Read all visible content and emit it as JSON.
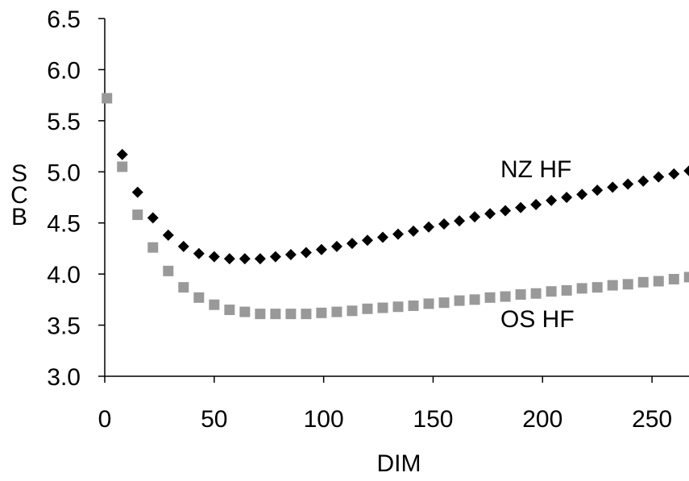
{
  "chart_data": {
    "type": "scatter",
    "xlabel": "DIM",
    "ylabel": "SCB",
    "xlim": [
      0,
      268
    ],
    "ylim": [
      3.0,
      6.5
    ],
    "x_ticks": [
      "0",
      "50",
      "100",
      "150",
      "200",
      "250"
    ],
    "y_ticks": [
      "3.0",
      "3.5",
      "4.0",
      "4.5",
      "5.0",
      "5.5",
      "6.0",
      "6.5"
    ],
    "grid": false,
    "legend": "none",
    "series": [
      {
        "name": "NZ HF",
        "marker": "diamond",
        "color": "#000000",
        "x": [
          8,
          15,
          22,
          29,
          36,
          43,
          50,
          57,
          64,
          71,
          78,
          85,
          92,
          99,
          106,
          113,
          120,
          127,
          134,
          141,
          148,
          155,
          162,
          169,
          176,
          183,
          190,
          197,
          204,
          211,
          218,
          225,
          232,
          239,
          246,
          253,
          260,
          267
        ],
        "y": [
          5.17,
          4.8,
          4.55,
          4.38,
          4.27,
          4.2,
          4.17,
          4.15,
          4.15,
          4.15,
          4.17,
          4.19,
          4.21,
          4.24,
          4.27,
          4.3,
          4.33,
          4.36,
          4.39,
          4.42,
          4.46,
          4.49,
          4.52,
          4.56,
          4.59,
          4.62,
          4.65,
          4.68,
          4.72,
          4.75,
          4.78,
          4.82,
          4.85,
          4.88,
          4.91,
          4.95,
          4.98,
          5.01
        ]
      },
      {
        "name": "OS HF",
        "marker": "square",
        "color": "#999999",
        "x": [
          1,
          8,
          15,
          22,
          29,
          36,
          43,
          50,
          57,
          64,
          71,
          78,
          85,
          92,
          99,
          106,
          113,
          120,
          127,
          134,
          141,
          148,
          155,
          162,
          169,
          176,
          183,
          190,
          197,
          204,
          211,
          218,
          225,
          232,
          239,
          246,
          253,
          260,
          267
        ],
        "y": [
          5.72,
          5.05,
          4.58,
          4.26,
          4.03,
          3.87,
          3.77,
          3.7,
          3.65,
          3.63,
          3.61,
          3.61,
          3.61,
          3.61,
          3.62,
          3.63,
          3.64,
          3.66,
          3.67,
          3.68,
          3.69,
          3.71,
          3.72,
          3.74,
          3.75,
          3.77,
          3.78,
          3.8,
          3.81,
          3.83,
          3.84,
          3.86,
          3.87,
          3.89,
          3.9,
          3.92,
          3.93,
          3.95,
          3.97
        ]
      }
    ]
  }
}
